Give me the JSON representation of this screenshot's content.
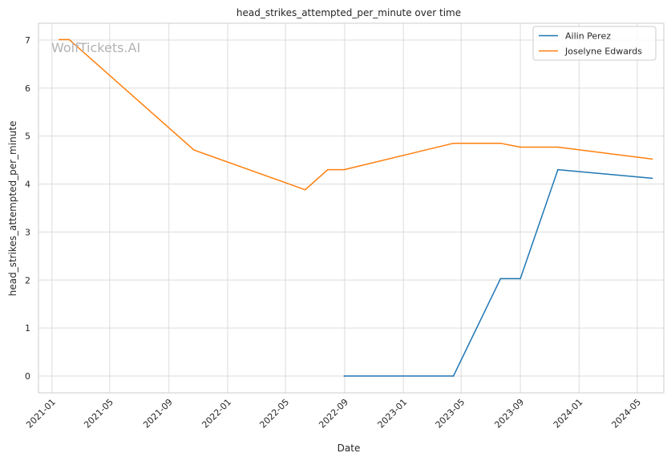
{
  "chart_data": {
    "type": "line",
    "title": "head_strikes_attempted_per_minute over time",
    "xlabel": "Date",
    "ylabel": "head_strikes_attempted_per_minute",
    "watermark": "WolfTickets.AI",
    "x_axis_type": "date",
    "xlim": [
      "2020-12-04",
      "2024-06-25"
    ],
    "ylim": [
      -0.35,
      7.35
    ],
    "x_ticks": [
      "2021-01-01",
      "2021-05-01",
      "2021-09-01",
      "2022-01-01",
      "2022-05-01",
      "2022-09-01",
      "2023-01-01",
      "2023-05-01",
      "2023-09-01",
      "2024-01-01",
      "2024-05-01"
    ],
    "x_tick_labels": [
      "2021-01",
      "2021-05",
      "2021-09",
      "2022-01",
      "2022-05",
      "2022-09",
      "2023-01",
      "2023-05",
      "2023-09",
      "2024-01",
      "2024-05"
    ],
    "y_ticks": [
      0,
      1,
      2,
      3,
      4,
      5,
      6,
      7
    ],
    "y_tick_labels": [
      "0",
      "1",
      "2",
      "3",
      "4",
      "5",
      "6",
      "7"
    ],
    "grid": true,
    "legend_position": "top-right",
    "series": [
      {
        "name": "Ailin Perez",
        "color": "#1f77b4",
        "points": [
          {
            "x": "2022-08-31",
            "y": 0.0
          },
          {
            "x": "2023-04-15",
            "y": 0.0
          },
          {
            "x": "2023-07-22",
            "y": 2.03
          },
          {
            "x": "2023-09-01",
            "y": 2.03
          },
          {
            "x": "2023-11-18",
            "y": 4.3
          },
          {
            "x": "2024-06-01",
            "y": 4.12
          }
        ]
      },
      {
        "name": "Joselyne Edwards",
        "color": "#ff7f0e",
        "points": [
          {
            "x": "2021-01-16",
            "y": 7.01
          },
          {
            "x": "2021-02-06",
            "y": 7.01
          },
          {
            "x": "2021-10-23",
            "y": 4.71
          },
          {
            "x": "2022-06-11",
            "y": 3.88
          },
          {
            "x": "2022-07-28",
            "y": 4.3
          },
          {
            "x": "2022-08-31",
            "y": 4.3
          },
          {
            "x": "2023-04-15",
            "y": 4.85
          },
          {
            "x": "2023-07-22",
            "y": 4.85
          },
          {
            "x": "2023-09-01",
            "y": 4.77
          },
          {
            "x": "2023-11-18",
            "y": 4.77
          },
          {
            "x": "2024-06-01",
            "y": 4.52
          }
        ]
      }
    ]
  }
}
